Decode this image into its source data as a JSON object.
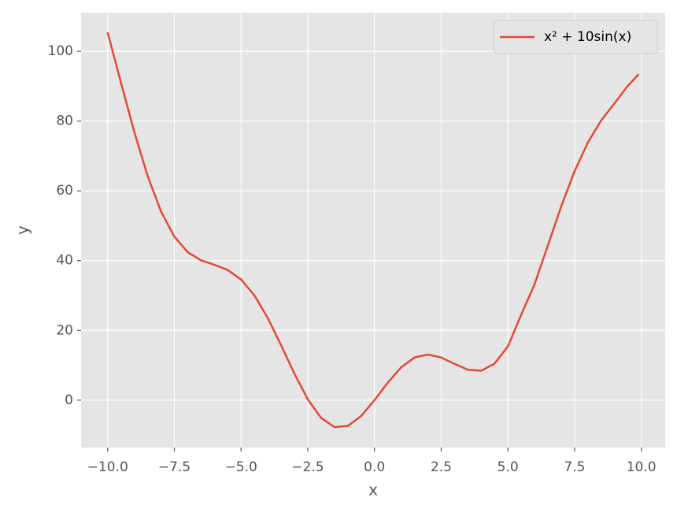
{
  "chart_data": {
    "type": "line",
    "xlabel": "x",
    "ylabel": "y",
    "x": [
      -10,
      -9.5,
      -9,
      -8.5,
      -8,
      -7.5,
      -7,
      -6.5,
      -6,
      -5.5,
      -5,
      -4.5,
      -4,
      -3.5,
      -3,
      -2.5,
      -2,
      -1.5,
      -1,
      -0.5,
      0,
      0.5,
      1,
      1.5,
      2,
      2.5,
      3,
      3.5,
      4,
      4.5,
      5,
      5.5,
      6,
      6.5,
      7,
      7.5,
      8,
      8.5,
      9,
      9.5,
      9.9
    ],
    "series": [
      {
        "name": "x² + 10sin(x)",
        "color": "#E24A33",
        "values": [
          105.44,
          91.0,
          76.88,
          64.26,
          54.11,
          46.87,
          42.43,
          40.1,
          38.79,
          37.31,
          34.59,
          30.03,
          23.57,
          15.76,
          7.59,
          0.27,
          -5.09,
          -7.72,
          -7.41,
          -4.54,
          0,
          5.04,
          9.41,
          12.22,
          13.09,
          12.23,
          10.41,
          8.74,
          8.43,
          10.47,
          15.41,
          24.5,
          33.21,
          44.4,
          55.57,
          65.63,
          73.89,
          80.24,
          85.12,
          90.17,
          93.43
        ]
      }
    ],
    "xlim": [
      -10.995,
      10.895
    ],
    "xticks": [
      {
        "value": -10,
        "label": "−10.0"
      },
      {
        "value": -7.5,
        "label": "−7.5"
      },
      {
        "value": -5,
        "label": "−5.0"
      },
      {
        "value": -2.5,
        "label": "−2.5"
      },
      {
        "value": 0,
        "label": "0.0"
      },
      {
        "value": 2.5,
        "label": "2.5"
      },
      {
        "value": 5,
        "label": "5.0"
      },
      {
        "value": 7.5,
        "label": "7.5"
      },
      {
        "value": 10,
        "label": "10.0"
      }
    ],
    "ylim": [
      -13.6,
      111.1
    ],
    "yticks": [
      0,
      20,
      40,
      60,
      80,
      100
    ],
    "grid": true,
    "legend": "upper right"
  }
}
